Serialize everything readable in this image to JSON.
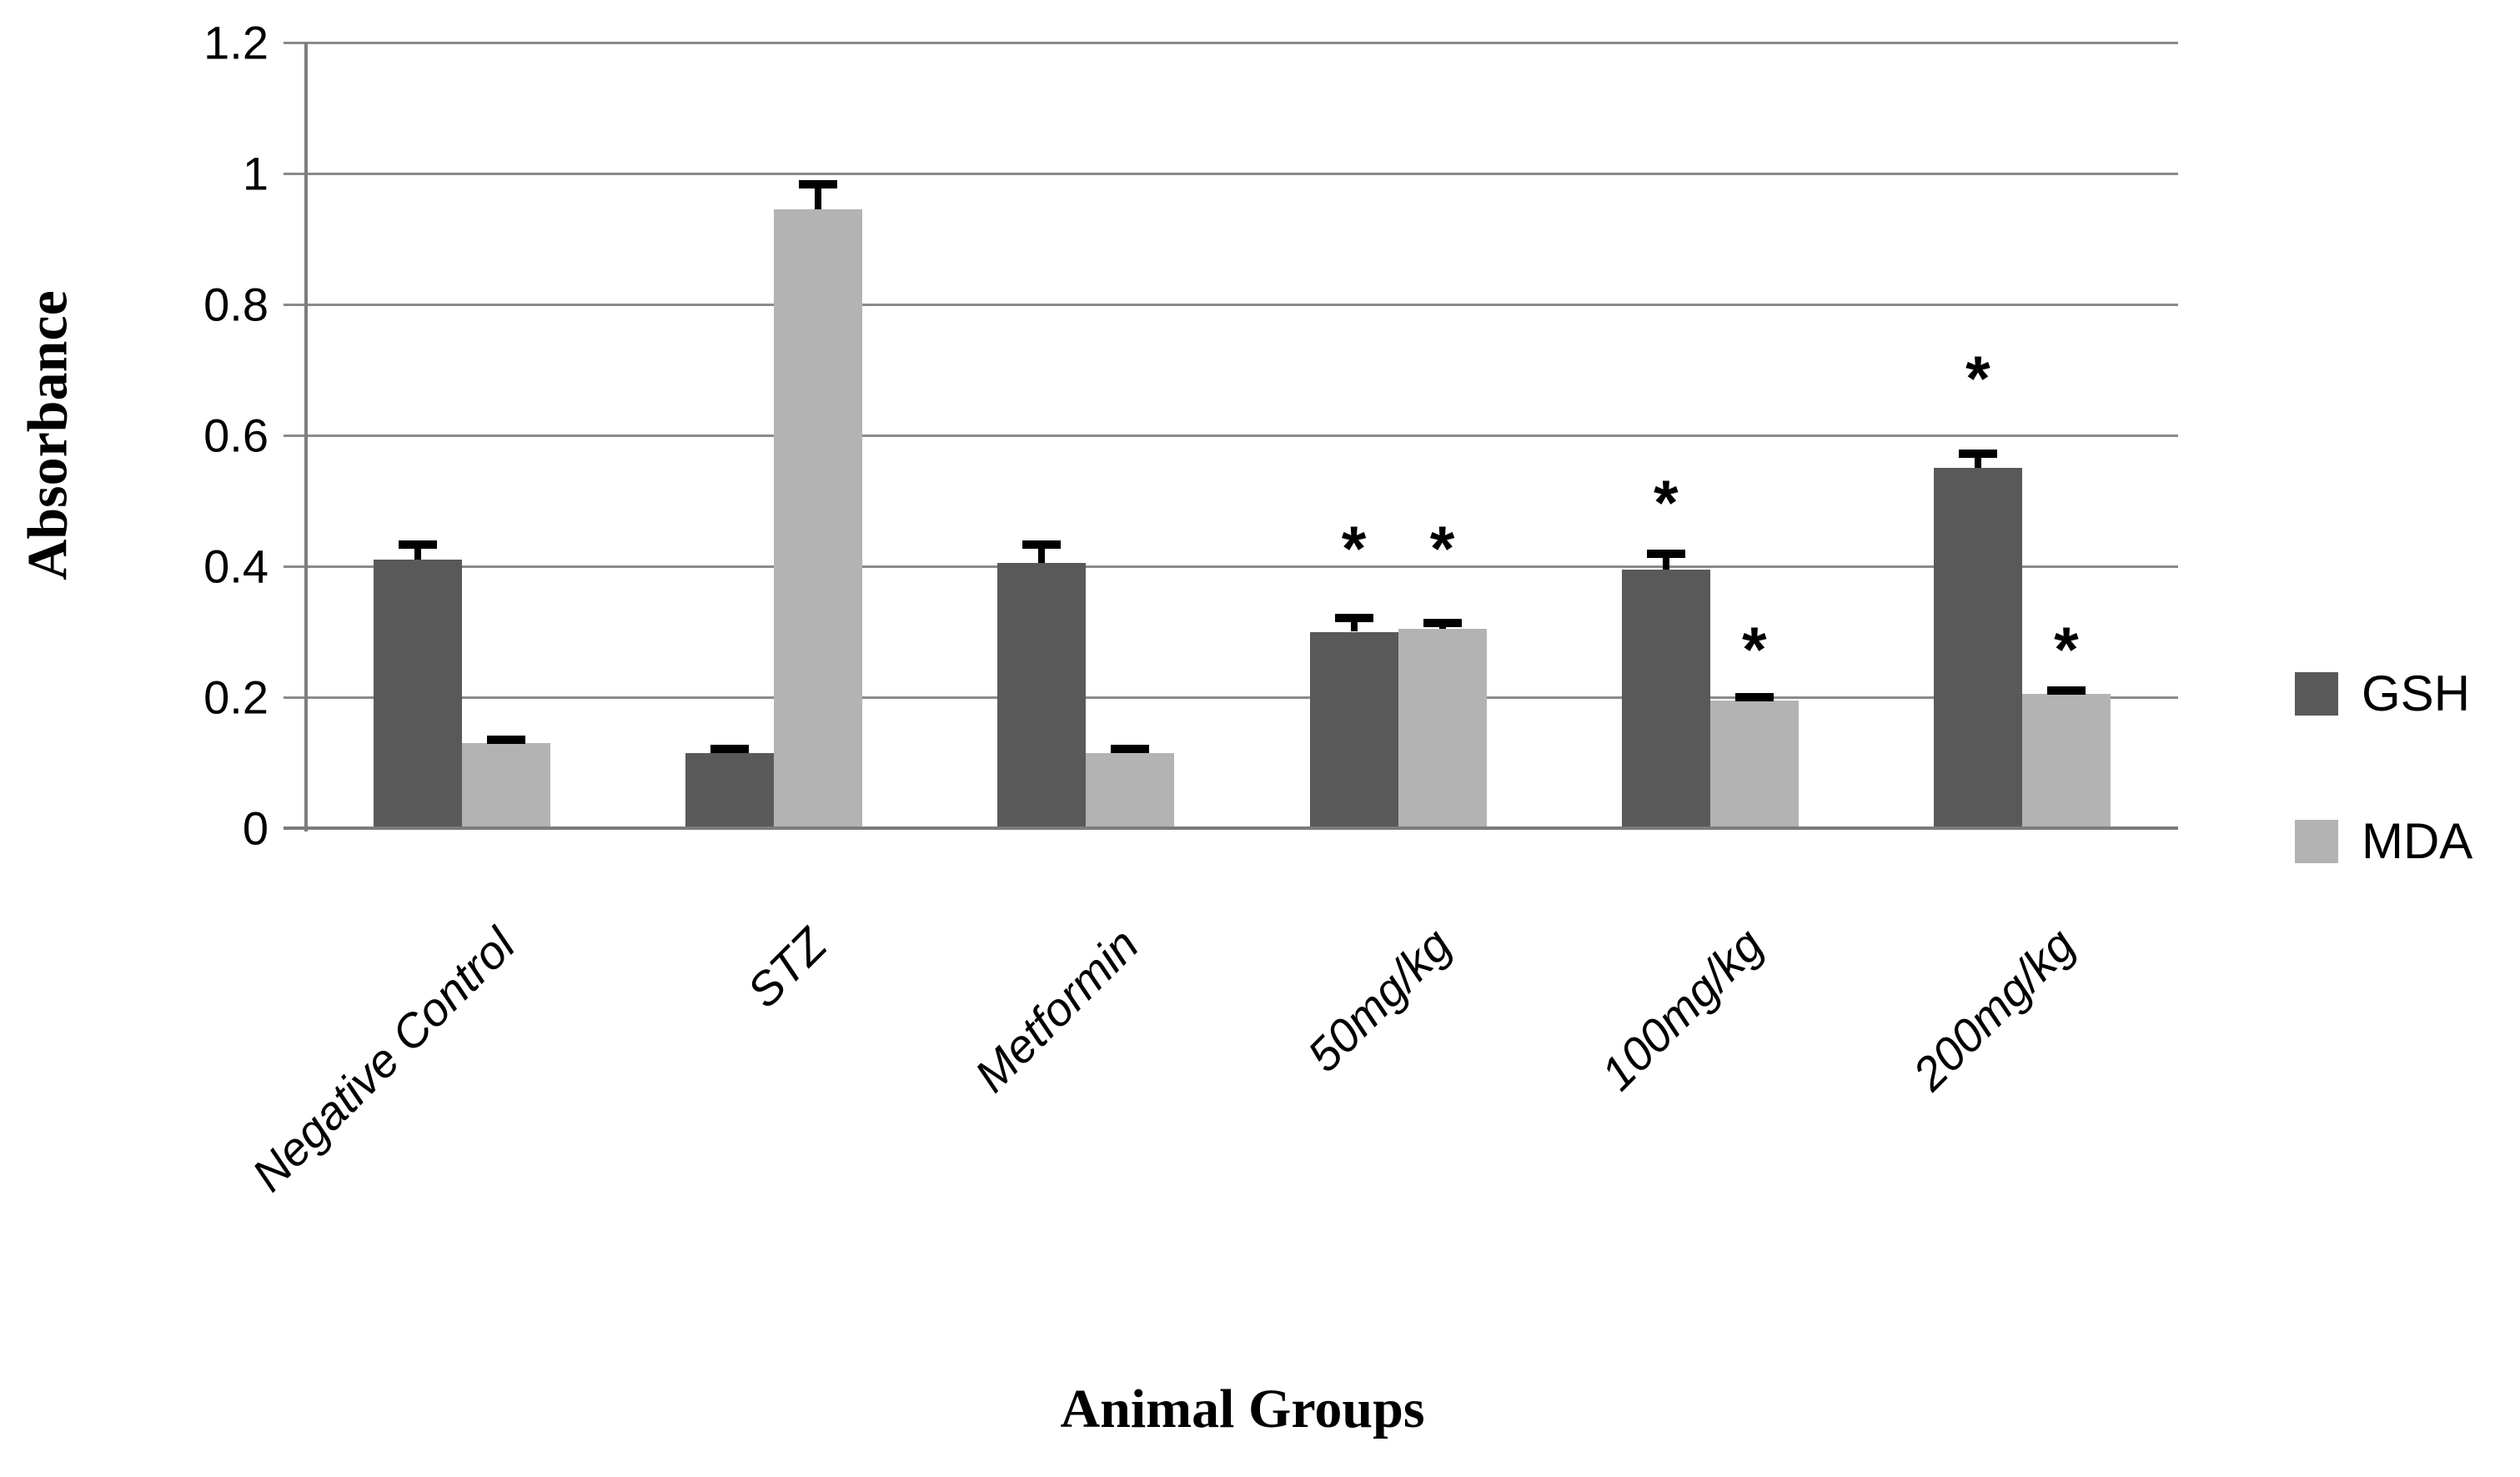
{
  "chart_data": {
    "type": "bar",
    "title": "",
    "xlabel": "Animal Groups",
    "ylabel": "Absorbance",
    "ylim": [
      0,
      1.2
    ],
    "ytick_step": 0.2,
    "yticks": [
      0,
      0.2,
      0.4,
      0.6,
      0.8,
      1,
      1.2
    ],
    "ytick_labels": [
      "0",
      "0.2",
      "0.4",
      "0.6",
      "0.8",
      "1",
      "1.2"
    ],
    "grid": true,
    "legend_position": "right",
    "significance_marker": "*",
    "categories": [
      "Negative Control",
      "STZ",
      "Metformin",
      "50mg/kg",
      "100mg/kg",
      "200mg/kg"
    ],
    "series": [
      {
        "name": "GSH",
        "color": "#595959",
        "values": [
          0.41,
          0.115,
          0.405,
          0.3,
          0.395,
          0.55
        ],
        "errors": [
          0.03,
          0.012,
          0.035,
          0.028,
          0.03,
          0.028
        ],
        "significant": [
          false,
          false,
          false,
          true,
          true,
          true
        ],
        "asterisk_y": [
          null,
          null,
          null,
          0.44,
          0.51,
          0.7
        ]
      },
      {
        "name": "MDA",
        "color": "#b3b3b3",
        "values": [
          0.13,
          0.945,
          0.115,
          0.305,
          0.195,
          0.205
        ],
        "errors": [
          0.012,
          0.045,
          0.012,
          0.015,
          0.012,
          0.012
        ],
        "significant": [
          false,
          false,
          false,
          true,
          true,
          true
        ],
        "asterisk_y": [
          null,
          null,
          null,
          0.44,
          0.285,
          0.285
        ]
      }
    ],
    "colors": {
      "gridline": "#8a8a8a",
      "axis": "#7c7c7c",
      "error_bar": "#000000",
      "text": "#000000",
      "background": "#ffffff"
    }
  }
}
